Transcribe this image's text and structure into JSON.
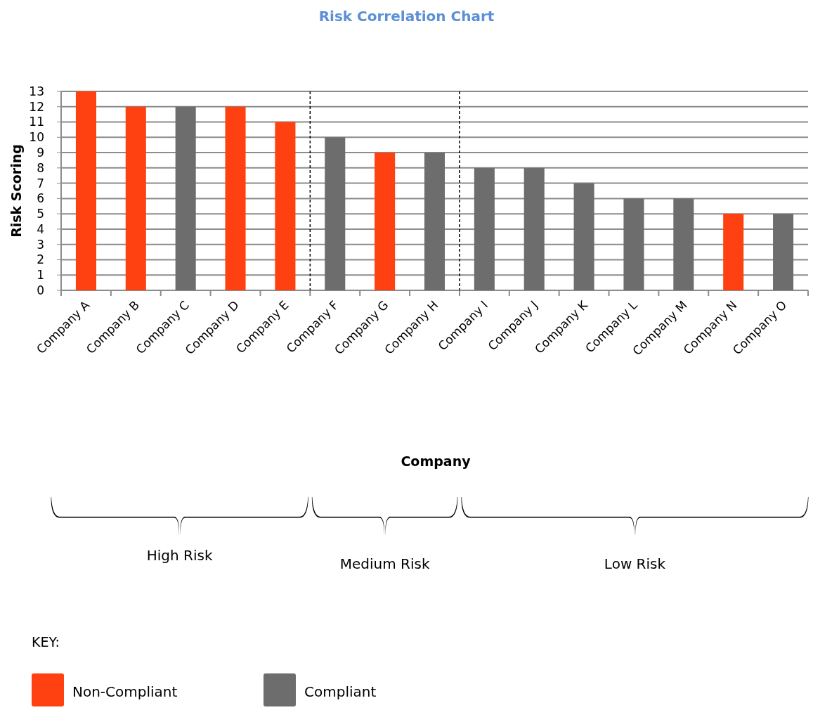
{
  "chart_data": {
    "type": "bar",
    "title": "Risk Correlation Chart",
    "ylabel": "Risk Scoring",
    "categories": [
      "Company A",
      "Company B",
      "Company C",
      "Company D",
      "Company E",
      "Company F",
      "Company G",
      "Company H",
      "Company I",
      "Company J",
      "Company K",
      "Company L",
      "Company M",
      "Company N",
      "Company O"
    ],
    "series": [
      {
        "name": "Non-Compliant",
        "color": "#ff4010",
        "values": [
          13,
          12,
          null,
          12,
          11,
          null,
          9,
          null,
          null,
          null,
          null,
          null,
          null,
          5,
          null
        ]
      },
      {
        "name": "Compliant",
        "color": "#6d6d6d",
        "values": [
          null,
          null,
          12,
          null,
          null,
          10,
          null,
          9,
          8,
          8,
          7,
          6,
          6,
          null,
          5
        ]
      }
    ],
    "ylim": [
      0,
      13
    ],
    "yticks": [
      0,
      1,
      2,
      3,
      4,
      5,
      6,
      7,
      8,
      9,
      10,
      11,
      12,
      13
    ],
    "grid": "y",
    "annotations": [
      "Company",
      "High Risk",
      "Medium Risk",
      "Low Risk"
    ],
    "legend": "bottom left",
    "legend_title": "KEY:"
  }
}
